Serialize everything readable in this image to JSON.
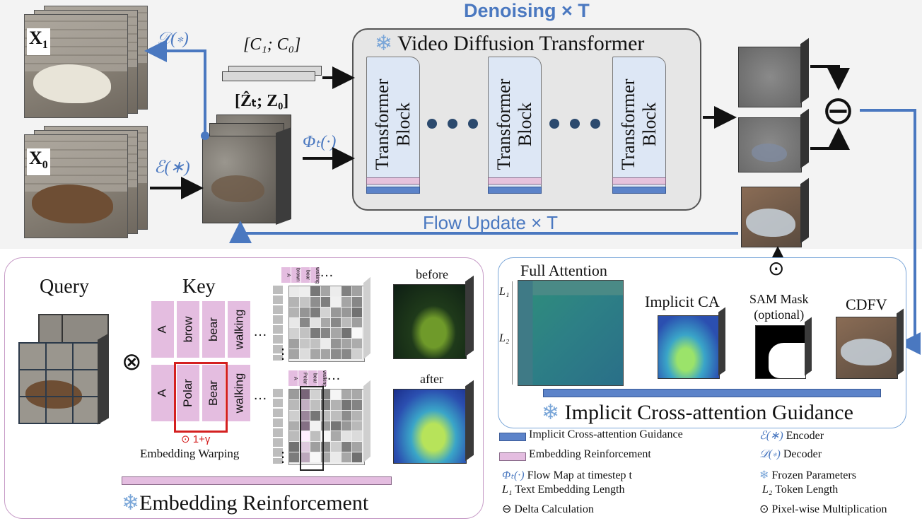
{
  "top": {
    "denoising_label": "Denoising × T",
    "flow_update_label": "Flow Update × T",
    "x1_label": "X",
    "x1_sub": "1",
    "x0_label": "X",
    "x0_sub": "0",
    "decoder_label": "𝒟(∗)",
    "encoder_label": "ℰ(∗)",
    "cond_label": "[C₁; C₀]",
    "latent_label": "[Ẑₜ; Z₀]",
    "flow_map_label": "Φₜ(·)",
    "vdt_title": "Video Diffusion Transformer",
    "block_line1": "Transformer",
    "block_line2": "Block",
    "minus_symbol": "⊖"
  },
  "embedding": {
    "title": "Embedding Reinforcement",
    "query_label": "Query",
    "key_label": "Key",
    "otimes": "⊗",
    "row1_tokens": [
      "A",
      "brow",
      "bear",
      "walking"
    ],
    "row2_tokens": [
      "A",
      "Polar",
      "Bear",
      "walking"
    ],
    "mini_row1": [
      "A",
      "brown",
      "bear",
      "walking"
    ],
    "mini_row2": [
      "A",
      "Polar",
      "bear",
      "walking"
    ],
    "ellipsis": "…",
    "vellipsis": "⋮",
    "warp_factor": "⊙ 1+γ",
    "warp_label": "Embedding Warping",
    "before_label": "before",
    "after_label": "after"
  },
  "icg": {
    "title": "Implicit Cross-attention Guidance",
    "full_attention": "Full Attention",
    "l1": "L₁",
    "l2": "L₂",
    "implicit_ca": "Implicit CA",
    "sam_mask_line1": "SAM Mask",
    "sam_mask_line2": "(optional)",
    "cdfv": "CDFV",
    "odot": "⊙"
  },
  "legend": {
    "icg": "Implicit Cross-attention Guidance",
    "er": "Embedding Reinforcement",
    "flow_sym": "Φₜ(·)",
    "flow_text": "Flow Map at timestep t",
    "l1_sym": "L₁",
    "l1_text": "Text Embedding Length",
    "delta_sym": "⊖",
    "delta_text": "Delta Calculation",
    "enc_sym": "ℰ(∗)",
    "enc_text": "Encoder",
    "dec_sym": "𝒟(∗)",
    "dec_text": "Decoder",
    "frozen_sym": "❄",
    "frozen_text": "Frozen Parameters",
    "l2_sym": "L₂",
    "l2_text": "Token Length",
    "pix_sym": "⊙",
    "pix_text": "Pixel-wise Multiplication"
  },
  "snowflake": "❄",
  "colors": {
    "accent_blue": "#4a78c0",
    "pink": "#e4bde0",
    "block_fill": "#dde7f5",
    "panel_gray": "#f3f3f3"
  }
}
